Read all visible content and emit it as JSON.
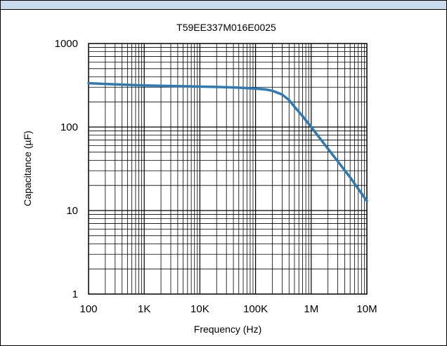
{
  "header": {
    "band_color": "#c8dcee"
  },
  "chart_data": {
    "type": "line",
    "title": "T59EE337M016E0025",
    "xlabel": "Frequency (Hz)",
    "ylabel": "Capacitance (µF)",
    "x_scale": "log",
    "y_scale": "log",
    "xlim": [
      100,
      10000000
    ],
    "ylim": [
      1,
      1000
    ],
    "grid": true,
    "x_ticks": [
      {
        "value": 100,
        "label": "100"
      },
      {
        "value": 1000,
        "label": "1K"
      },
      {
        "value": 10000,
        "label": "10K"
      },
      {
        "value": 100000,
        "label": "100K"
      },
      {
        "value": 1000000,
        "label": "1M"
      },
      {
        "value": 10000000,
        "label": "10M"
      }
    ],
    "y_ticks": [
      {
        "value": 1,
        "label": "1"
      },
      {
        "value": 10,
        "label": "10"
      },
      {
        "value": 100,
        "label": "100"
      },
      {
        "value": 1000,
        "label": "1000"
      }
    ],
    "series": [
      {
        "color": "#2a7ab8",
        "x": [
          100,
          200,
          500,
          1000,
          2000,
          5000,
          10000,
          20000,
          50000,
          100000,
          150000,
          200000,
          300000,
          400000,
          500000,
          700000,
          1000000,
          2000000,
          5000000,
          10000000
        ],
        "y": [
          335,
          328,
          320,
          315,
          312,
          308,
          305,
          302,
          296,
          288,
          282,
          272,
          245,
          210,
          175,
          135,
          100,
          55,
          25,
          13
        ]
      }
    ]
  }
}
